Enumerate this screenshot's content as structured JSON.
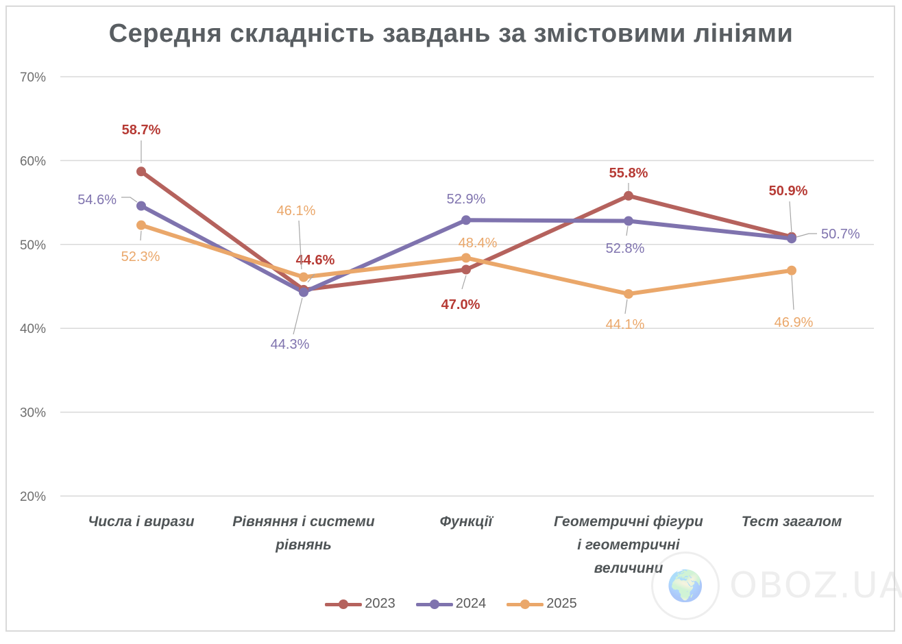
{
  "chart_data": {
    "type": "line",
    "title": "Середня  складність завдань за змістовими лініями",
    "categories": [
      "Числа і вирази",
      "Рівняння  і системи рівнянь",
      "Функції",
      "Геометричні фігури і геометричні величини",
      "Тест загалом"
    ],
    "category_lines": [
      [
        "Числа і вирази"
      ],
      [
        "Рівняння  і системи",
        "рівнянь"
      ],
      [
        "Функції"
      ],
      [
        "Геометричні фігури",
        "і геометричні",
        "величини"
      ],
      [
        "Тест загалом"
      ]
    ],
    "ylim": [
      20,
      70
    ],
    "yticks": [
      "20%",
      "30%",
      "40%",
      "50%",
      "60%",
      "70%"
    ],
    "grid": true,
    "legend_position": "bottom",
    "series": [
      {
        "name": "2023",
        "color": "#b5625d",
        "values": [
          58.7,
          44.6,
          47.0,
          55.8,
          50.9
        ],
        "labels": [
          "58.7%",
          "44.6%",
          "47.0%",
          "55.8%",
          "50.9%"
        ]
      },
      {
        "name": "2024",
        "color": "#7f73ae",
        "values": [
          54.6,
          44.3,
          52.9,
          52.8,
          50.7
        ],
        "labels": [
          "54.6%",
          "44.3%",
          "52.9%",
          "52.8%",
          "50.7%"
        ]
      },
      {
        "name": "2025",
        "color": "#eaa76a",
        "values": [
          52.3,
          46.1,
          48.4,
          44.1,
          46.9
        ],
        "labels": [
          "52.3%",
          "46.1%",
          "48.4%",
          "44.1%",
          "46.9%"
        ]
      }
    ]
  },
  "watermark": {
    "text": "OBOZ.UA",
    "icon": "globe-icon"
  }
}
